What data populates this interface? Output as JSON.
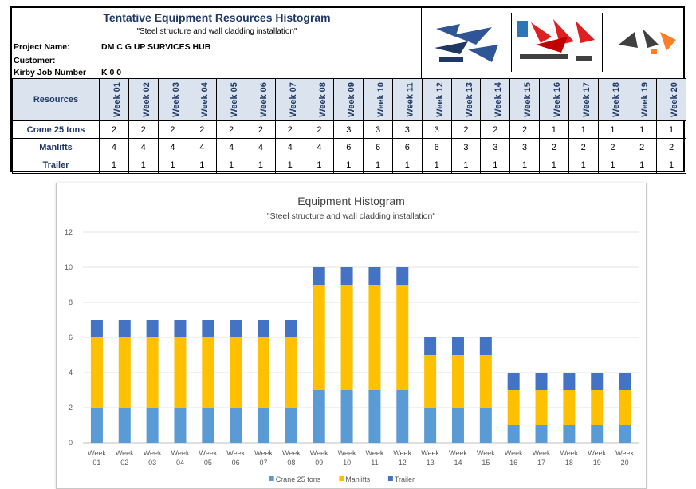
{
  "sheet": {
    "title": "Tentative Equipment Resources Histogram",
    "subtitle": "\"Steel structure and wall cladding installation\"",
    "project_label": "Project Name:",
    "project_value": "DM C G  UP SURVICES HUB",
    "customer_label": "Customer:",
    "customer_value": "",
    "job_label": "Kirby Job Number",
    "job_value": "K   0 0"
  },
  "table": {
    "resources_header": "Resources",
    "weeks": [
      "Week 01",
      "Week 02",
      "Week 03",
      "Week 04",
      "Week 05",
      "Week 06",
      "Week 07",
      "Week 08",
      "Week 09",
      "Week 10",
      "Week 11",
      "Week 12",
      "Week 13",
      "Week 14",
      "Week 15",
      "Week 16",
      "Week 17",
      "Week 18",
      "Week 19",
      "Week 20"
    ],
    "rows": [
      {
        "name": "Crane 25 tons",
        "values": [
          2,
          2,
          2,
          2,
          2,
          2,
          2,
          2,
          3,
          3,
          3,
          3,
          2,
          2,
          2,
          1,
          1,
          1,
          1,
          1
        ]
      },
      {
        "name": "Manlifts",
        "values": [
          4,
          4,
          4,
          4,
          4,
          4,
          4,
          4,
          6,
          6,
          6,
          6,
          3,
          3,
          3,
          2,
          2,
          2,
          2,
          2
        ]
      },
      {
        "name": "Trailer",
        "values": [
          1,
          1,
          1,
          1,
          1,
          1,
          1,
          1,
          1,
          1,
          1,
          1,
          1,
          1,
          1,
          1,
          1,
          1,
          1,
          1
        ]
      }
    ]
  },
  "colors": {
    "crane": "#5b9bd5",
    "manlifts": "#ffc000",
    "trailer": "#4472c4",
    "header_fill": "#dbe3ef",
    "title_text": "#1f3864"
  },
  "chart_data": {
    "type": "bar",
    "stacked": true,
    "title": "Equipment Histogram",
    "subtitle": "\"Steel structure and wall cladding installation\"",
    "categories": [
      "Week 01",
      "Week 02",
      "Week 03",
      "Week 04",
      "Week 05",
      "Week 06",
      "Week 07",
      "Week 08",
      "Week 09",
      "Week 10",
      "Week 11",
      "Week 12",
      "Week 13",
      "Week 14",
      "Week 15",
      "Week 16",
      "Week 17",
      "Week 18",
      "Week 19",
      "Week 20"
    ],
    "series": [
      {
        "name": "Crane 25 tons",
        "values": [
          2,
          2,
          2,
          2,
          2,
          2,
          2,
          2,
          3,
          3,
          3,
          3,
          2,
          2,
          2,
          1,
          1,
          1,
          1,
          1
        ]
      },
      {
        "name": "Manlifts",
        "values": [
          4,
          4,
          4,
          4,
          4,
          4,
          4,
          4,
          6,
          6,
          6,
          6,
          3,
          3,
          3,
          2,
          2,
          2,
          2,
          2
        ]
      },
      {
        "name": "Trailer",
        "values": [
          1,
          1,
          1,
          1,
          1,
          1,
          1,
          1,
          1,
          1,
          1,
          1,
          1,
          1,
          1,
          1,
          1,
          1,
          1,
          1
        ]
      }
    ],
    "ylim": [
      0,
      12
    ],
    "yticks": [
      0,
      2,
      4,
      6,
      8,
      10,
      12
    ],
    "grid": true,
    "legend": "bottom",
    "xlabel": "",
    "ylabel": ""
  }
}
